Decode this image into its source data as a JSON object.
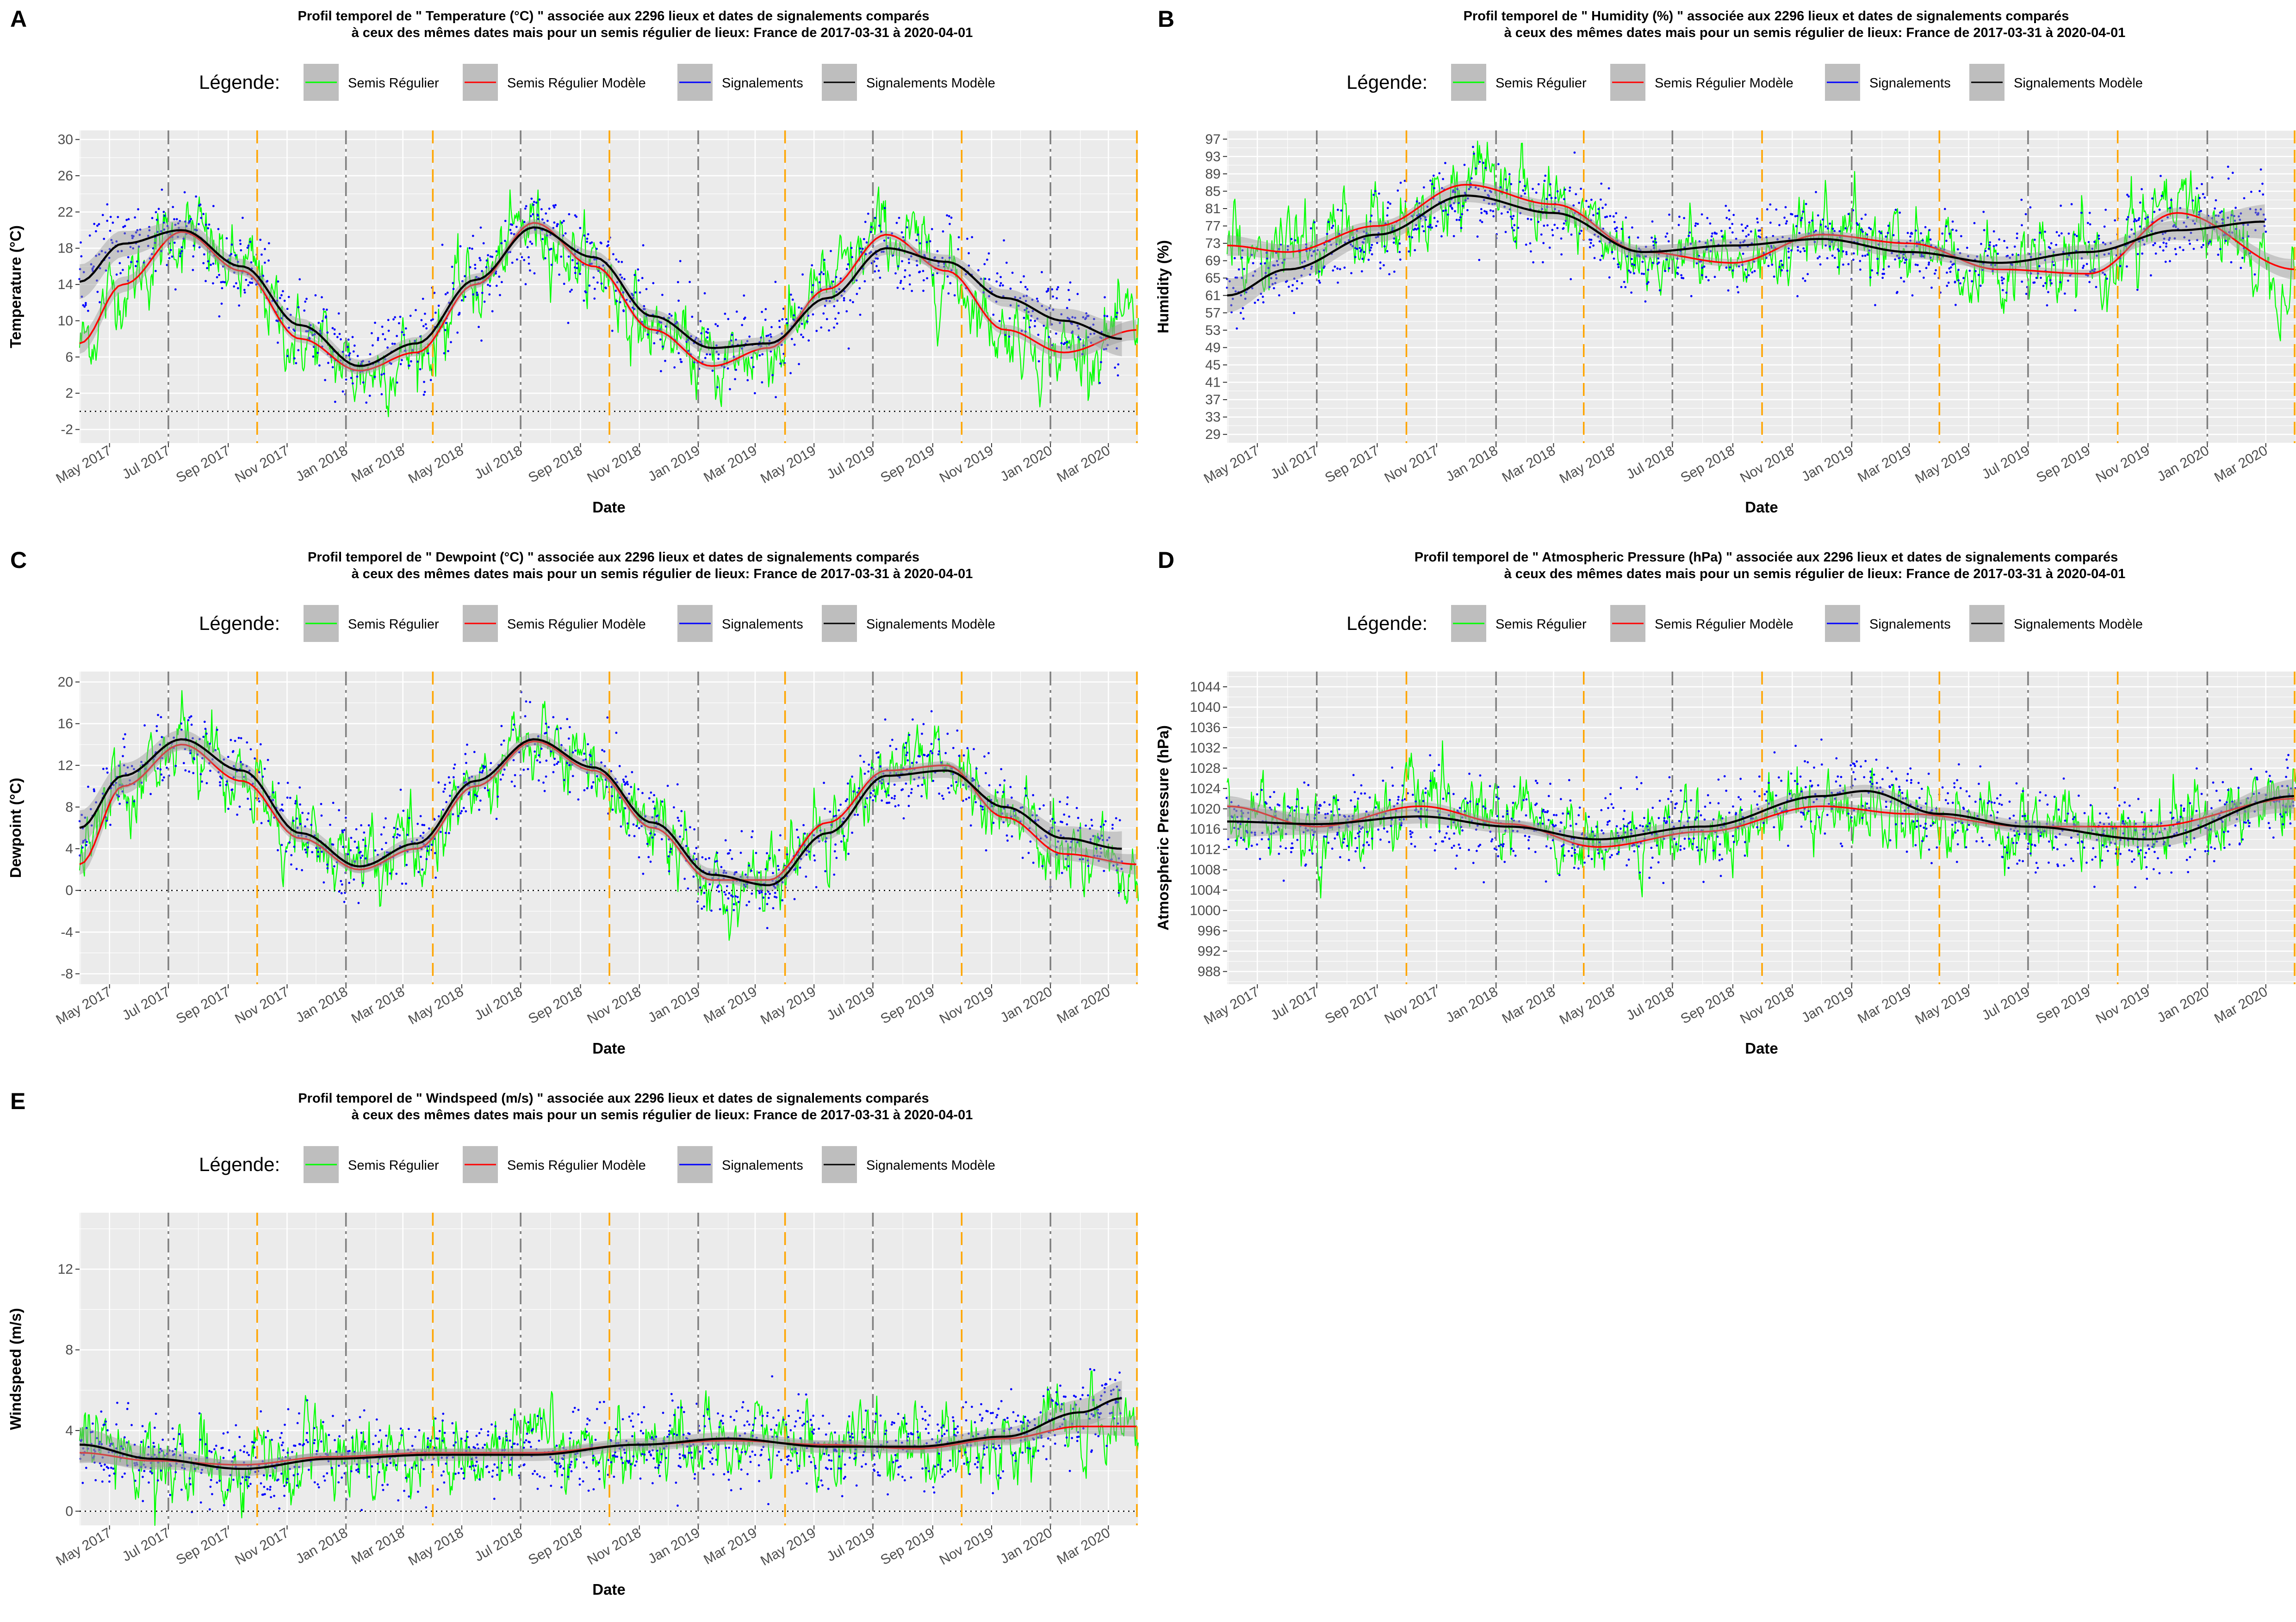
{
  "colors": {
    "semis": "#00ff00",
    "semis_model": "#ff0000",
    "signal": "#0000ff",
    "signal_model": "#000000",
    "ribbon": "#999999",
    "panel_bg": "#ebebeb",
    "grid": "#ffffff",
    "vline_gray": "#7f7f7f",
    "vline_orange": "#ffa500"
  },
  "x_ticks": [
    "May 2017",
    "Jul 2017",
    "Sep 2017",
    "Nov 2017",
    "Jan 2018",
    "Mar 2018",
    "May 2018",
    "Jul 2018",
    "Sep 2018",
    "Nov 2018",
    "Jan 2019",
    "Mar 2019",
    "May 2019",
    "Jul 2019",
    "Sep 2019",
    "Nov 2019",
    "Jan 2020",
    "Mar 2020"
  ],
  "legend": {
    "title": "Légende:",
    "items": [
      "Semis Régulier",
      "Semis Régulier Modèle",
      "Signalements",
      "Signalements Modèle"
    ]
  },
  "chart_data": [
    {
      "letter": "A",
      "type": "line",
      "title_line1": "Profil temporel de \" Temperature (°C) \" associée aux  2296  lieux et dates de signalements comparés",
      "title_line2": "à ceux des mêmes dates mais pour un semis régulier de lieux:  France  de 2017-03-31 à 2020-04-01",
      "xlabel": "Date",
      "ylabel": "Temperature (°C)",
      "ylim": [
        -3.5,
        31
      ],
      "yticks": [
        "-2",
        "2",
        "6",
        "10",
        "14",
        "18",
        "22",
        "26",
        "30"
      ],
      "x_range": [
        "2017-03-31",
        "2020-04-01"
      ],
      "zero_line": 0,
      "series": [
        {
          "name": "Semis Régulier Modèle",
          "x": [
            "2017-03-31",
            "2017-05-15",
            "2017-07-15",
            "2017-09-15",
            "2017-11-15",
            "2018-01-15",
            "2018-03-15",
            "2018-05-15",
            "2018-07-15",
            "2018-09-15",
            "2018-11-15",
            "2019-01-15",
            "2019-03-15",
            "2019-05-15",
            "2019-07-15",
            "2019-09-15",
            "2019-11-15",
            "2020-01-15",
            "2020-04-01"
          ],
          "values": [
            7.5,
            14,
            19.8,
            15.5,
            8,
            4.5,
            6.5,
            14,
            20.8,
            16,
            9,
            5,
            7,
            13.5,
            19.5,
            15.5,
            9,
            6.5,
            9
          ]
        },
        {
          "name": "Signalements Modèle",
          "x": [
            "2017-03-31",
            "2017-05-15",
            "2017-07-15",
            "2017-09-15",
            "2017-11-15",
            "2018-01-15",
            "2018-03-15",
            "2018-05-15",
            "2018-07-15",
            "2018-09-15",
            "2018-11-15",
            "2019-01-15",
            "2019-03-15",
            "2019-05-15",
            "2019-07-15",
            "2019-09-15",
            "2019-11-15",
            "2020-01-15",
            "2020-03-15"
          ],
          "values": [
            14.3,
            18.5,
            20,
            16,
            9.5,
            5,
            7.5,
            14.5,
            20.3,
            17,
            10.5,
            7,
            7.5,
            12.5,
            18,
            16.5,
            12.5,
            10,
            8
          ]
        }
      ],
      "vlines_gray": [
        "2017-07-01",
        "2018-01-01",
        "2018-07-01",
        "2019-01-01",
        "2019-07-01",
        "2020-01-01"
      ],
      "vlines_orange": [
        "2017-10-01",
        "2018-04-01",
        "2018-10-01",
        "2019-04-01",
        "2019-10-01",
        "2020-04-01"
      ]
    },
    {
      "letter": "B",
      "type": "line",
      "title_line1": "Profil temporel de \" Humidity (%) \" associée aux  2296  lieux et dates de signalements comparés",
      "title_line2": "à ceux des mêmes dates mais pour un semis régulier de lieux:  France  de 2017-03-31 à 2020-04-01",
      "xlabel": "Date",
      "ylabel": "Humidity (%)",
      "ylim": [
        27,
        99
      ],
      "yticks": [
        "29",
        "33",
        "37",
        "41",
        "45",
        "49",
        "53",
        "57",
        "61",
        "65",
        "69",
        "73",
        "77",
        "81",
        "85",
        "89",
        "93",
        "97"
      ],
      "x_range": [
        "2017-03-31",
        "2020-04-01"
      ],
      "series": [
        {
          "name": "Semis Régulier Modèle",
          "x": [
            "2017-03-31",
            "2017-06-01",
            "2017-09-01",
            "2017-12-01",
            "2018-03-01",
            "2018-06-01",
            "2018-09-01",
            "2018-12-01",
            "2019-03-01",
            "2019-06-01",
            "2019-09-01",
            "2019-12-01",
            "2020-04-01"
          ],
          "values": [
            72.5,
            71,
            77,
            86.5,
            82,
            71,
            68.5,
            75,
            73,
            67,
            66,
            80,
            67
          ]
        },
        {
          "name": "Signalements Modèle",
          "x": [
            "2017-03-31",
            "2017-06-01",
            "2017-09-01",
            "2017-12-01",
            "2018-03-01",
            "2018-06-01",
            "2018-09-01",
            "2018-12-01",
            "2019-03-01",
            "2019-06-01",
            "2019-09-01",
            "2019-12-01",
            "2020-03-01"
          ],
          "values": [
            61,
            67,
            75,
            84,
            80,
            71,
            72.5,
            74,
            71,
            68.5,
            71,
            76,
            78
          ]
        }
      ],
      "vlines_gray": [
        "2017-07-01",
        "2018-01-01",
        "2018-07-01",
        "2019-01-01",
        "2019-07-01",
        "2020-01-01"
      ],
      "vlines_orange": [
        "2017-10-01",
        "2018-04-01",
        "2018-10-01",
        "2019-04-01",
        "2019-10-01",
        "2020-04-01"
      ]
    },
    {
      "letter": "C",
      "type": "line",
      "title_line1": "Profil temporel de \" Dewpoint (°C) \" associée aux  2296  lieux et dates de signalements comparés",
      "title_line2": "à ceux des mêmes dates mais pour un semis régulier de lieux:  France  de 2017-03-31 à 2020-04-01",
      "xlabel": "Date",
      "ylabel": "Dewpoint (°C)",
      "ylim": [
        -9,
        21
      ],
      "yticks": [
        "-8",
        "-4",
        "0",
        "4",
        "8",
        "12",
        "16",
        "20"
      ],
      "x_range": [
        "2017-03-31",
        "2020-04-01"
      ],
      "zero_line": 0,
      "series": [
        {
          "name": "Semis Régulier Modèle",
          "x": [
            "2017-03-31",
            "2017-05-15",
            "2017-07-15",
            "2017-09-15",
            "2017-11-15",
            "2018-01-15",
            "2018-03-15",
            "2018-05-15",
            "2018-07-15",
            "2018-09-15",
            "2018-11-15",
            "2019-01-15",
            "2019-03-15",
            "2019-05-15",
            "2019-07-15",
            "2019-09-15",
            "2019-11-15",
            "2020-01-15",
            "2020-04-01"
          ],
          "values": [
            2.5,
            10,
            14,
            10.5,
            5,
            2,
            4,
            10,
            14.3,
            11.5,
            6,
            1,
            1,
            6.5,
            11.5,
            12,
            7,
            3.5,
            2.5
          ]
        },
        {
          "name": "Signalements Modèle",
          "x": [
            "2017-03-31",
            "2017-05-15",
            "2017-07-15",
            "2017-09-15",
            "2017-11-15",
            "2018-01-15",
            "2018-03-15",
            "2018-05-15",
            "2018-07-15",
            "2018-09-15",
            "2018-11-15",
            "2019-01-15",
            "2019-03-15",
            "2019-05-15",
            "2019-07-15",
            "2019-09-15",
            "2019-11-15",
            "2020-01-15",
            "2020-03-15"
          ],
          "values": [
            6,
            11,
            14.5,
            11.5,
            5.5,
            2.3,
            4.5,
            10.5,
            14.5,
            11.8,
            6.5,
            1.5,
            0.5,
            5.5,
            11,
            11.5,
            8,
            5,
            4
          ]
        }
      ],
      "vlines_gray": [
        "2017-07-01",
        "2018-01-01",
        "2018-07-01",
        "2019-01-01",
        "2019-07-01",
        "2020-01-01"
      ],
      "vlines_orange": [
        "2017-10-01",
        "2018-04-01",
        "2018-10-01",
        "2019-04-01",
        "2019-10-01",
        "2020-04-01"
      ]
    },
    {
      "letter": "D",
      "type": "line",
      "title_line1": "Profil temporel de \" Atmospheric Pressure (hPa) \" associée aux  2296  lieux et dates de signalements comparés",
      "title_line2": "à ceux des mêmes dates mais pour un semis régulier de lieux:  France  de 2017-03-31 à 2020-04-01",
      "xlabel": "Date",
      "ylabel": "Atmospheric Pressure (hPa)",
      "ylim": [
        985.5,
        1047
      ],
      "yticks": [
        "988",
        "992",
        "996",
        "1000",
        "1004",
        "1008",
        "1012",
        "1016",
        "1020",
        "1024",
        "1028",
        "1032",
        "1036",
        "1040",
        "1044"
      ],
      "x_range": [
        "2017-03-31",
        "2020-04-01"
      ],
      "series": [
        {
          "name": "Semis Régulier Modèle",
          "x": [
            "2017-03-31",
            "2017-07-01",
            "2017-10-15",
            "2018-01-15",
            "2018-04-15",
            "2018-08-01",
            "2018-12-01",
            "2019-03-01",
            "2019-07-01",
            "2019-11-01",
            "2020-04-01"
          ],
          "values": [
            1020.5,
            1016.5,
            1020.5,
            1017,
            1012.5,
            1015.5,
            1020.5,
            1019,
            1016.5,
            1016.5,
            1022
          ]
        },
        {
          "name": "Signalements Modèle",
          "x": [
            "2017-03-31",
            "2017-07-01",
            "2017-10-15",
            "2018-01-15",
            "2018-04-15",
            "2018-08-01",
            "2018-12-01",
            "2019-01-15",
            "2019-04-01",
            "2019-07-01",
            "2019-11-01",
            "2020-04-01"
          ],
          "values": [
            1017.5,
            1017,
            1018.5,
            1016.5,
            1014,
            1016.5,
            1022.5,
            1023.5,
            1019,
            1016.5,
            1014,
            1022.5
          ]
        }
      ],
      "vlines_gray": [
        "2017-07-01",
        "2018-01-01",
        "2018-07-01",
        "2019-01-01",
        "2019-07-01",
        "2020-01-01"
      ],
      "vlines_orange": [
        "2017-10-01",
        "2018-04-01",
        "2018-10-01",
        "2019-04-01",
        "2019-10-01",
        "2020-04-01"
      ]
    },
    {
      "letter": "E",
      "type": "line",
      "title_line1": "Profil temporel de \" Windspeed (m/s) \" associée aux  2296  lieux et dates de signalements comparés",
      "title_line2": "à ceux des mêmes dates mais pour un semis régulier de lieux:  France  de 2017-03-31 à 2020-04-01",
      "xlabel": "Date",
      "ylabel": "Windspeed (m/s)",
      "ylim": [
        -0.7,
        14.8
      ],
      "yticks": [
        "0",
        "4",
        "8",
        "12"
      ],
      "x_range": [
        "2017-03-31",
        "2020-04-01"
      ],
      "zero_line": 0,
      "series": [
        {
          "name": "Semis Régulier Modèle",
          "x": [
            "2017-03-31",
            "2017-06-15",
            "2017-09-15",
            "2017-12-15",
            "2018-04-01",
            "2018-07-15",
            "2018-11-01",
            "2019-02-01",
            "2019-05-15",
            "2019-08-15",
            "2019-11-15",
            "2020-02-01",
            "2020-04-01"
          ],
          "values": [
            2.9,
            2.5,
            2.3,
            2.7,
            2.9,
            2.9,
            3.3,
            3.5,
            3.3,
            3.1,
            3.6,
            4.2,
            4.2
          ]
        },
        {
          "name": "Signalements Modèle",
          "x": [
            "2017-03-31",
            "2017-06-15",
            "2017-09-15",
            "2017-12-15",
            "2018-04-01",
            "2018-07-15",
            "2018-11-01",
            "2019-02-01",
            "2019-05-15",
            "2019-08-15",
            "2019-11-15",
            "2020-02-01",
            "2020-03-15"
          ],
          "values": [
            3.3,
            2.6,
            2.1,
            2.6,
            2.8,
            2.8,
            3.3,
            3.6,
            3.2,
            3.2,
            3.7,
            4.9,
            5.6
          ]
        }
      ],
      "vlines_gray": [
        "2017-07-01",
        "2018-01-01",
        "2018-07-01",
        "2019-01-01",
        "2019-07-01",
        "2020-01-01"
      ],
      "vlines_orange": [
        "2017-10-01",
        "2018-04-01",
        "2018-10-01",
        "2019-04-01",
        "2019-10-01",
        "2020-04-01"
      ]
    }
  ]
}
